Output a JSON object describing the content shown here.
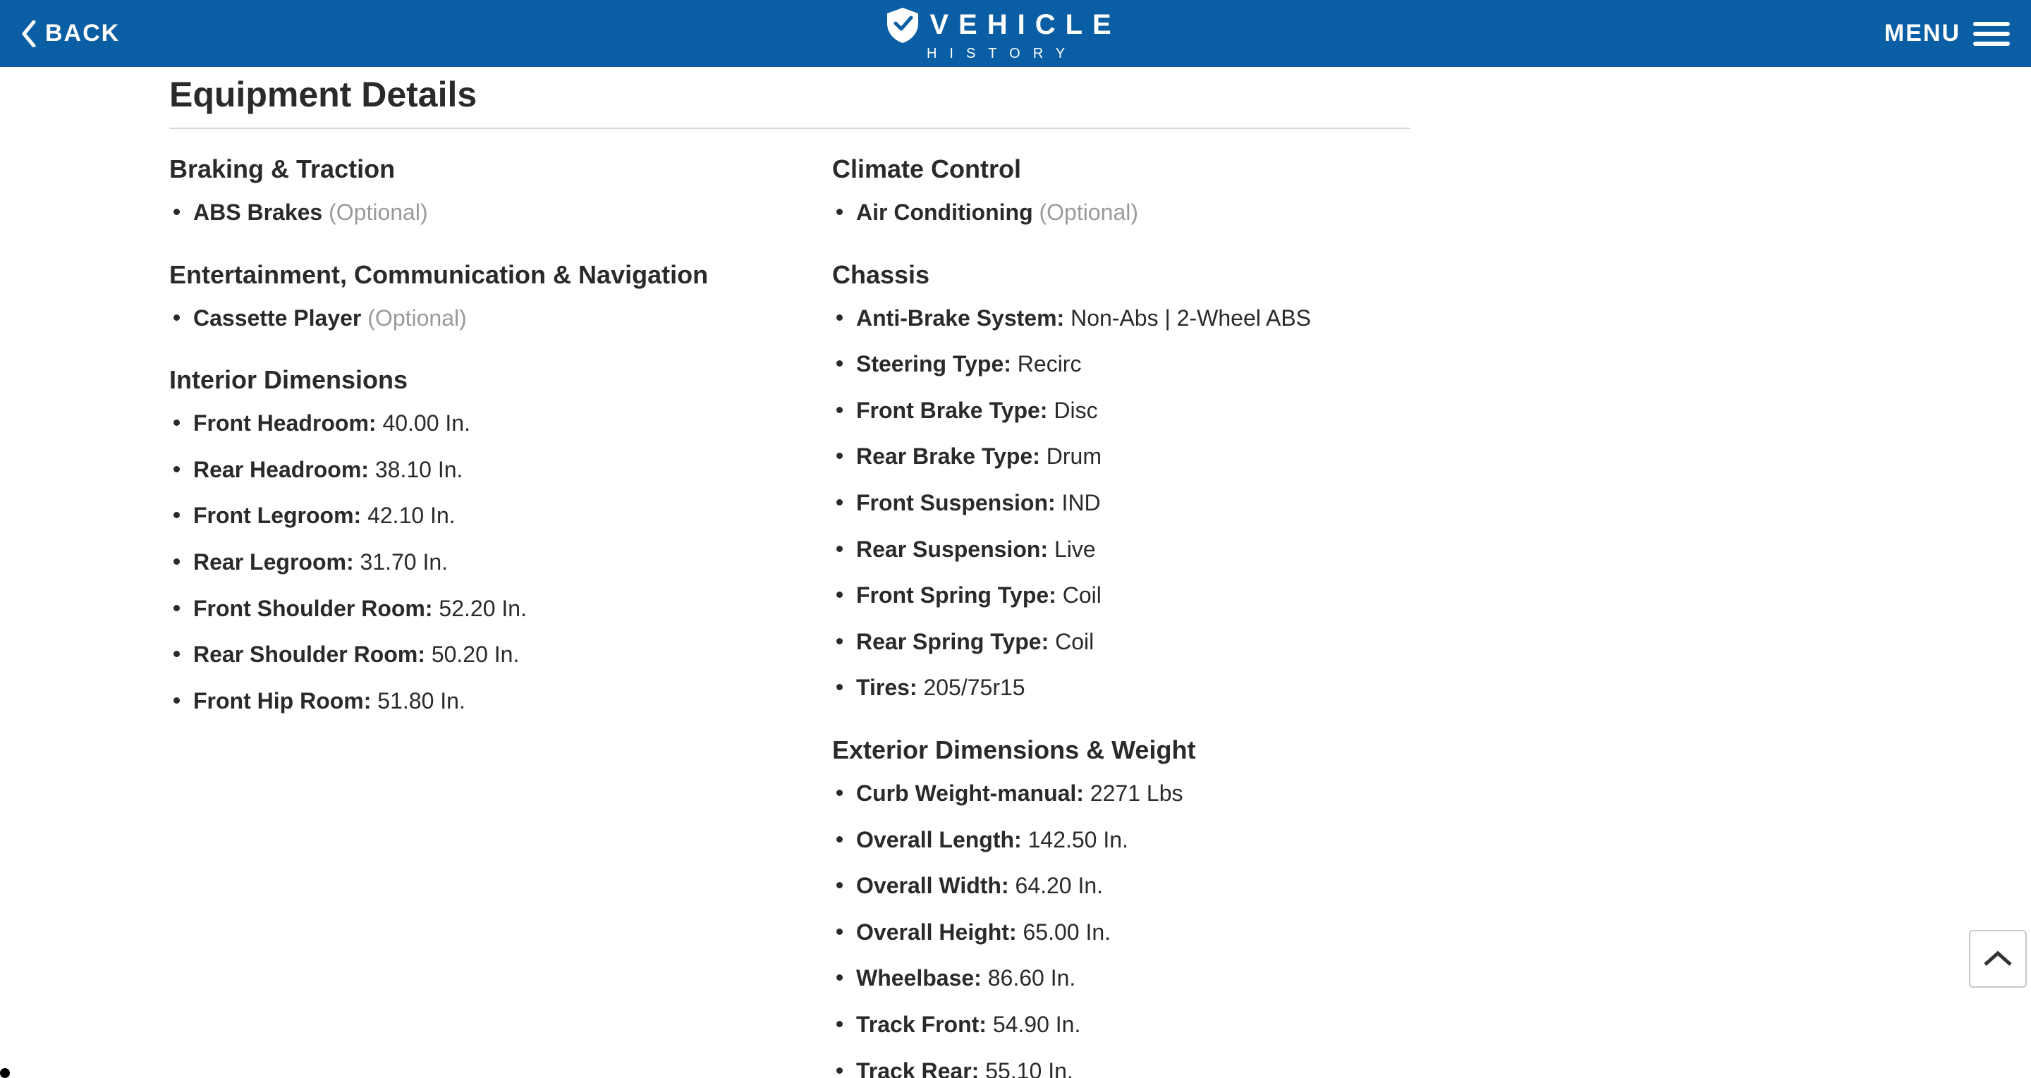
{
  "colors": {
    "topbar_bg": "#0a5ea3",
    "topbar_fg": "#ffffff",
    "page_bg": "#ffffff",
    "text": "#2a2a2a",
    "muted": "#9a9a9a",
    "rule": "#d8d8d8",
    "scroll_border": "#c8c8c8"
  },
  "topbar": {
    "back_label": "BACK",
    "logo_top": "VEHICLE",
    "logo_bottom": "HISTORY",
    "menu_label": "MENU"
  },
  "title": "Equipment Details",
  "left_sections": [
    {
      "heading": "Braking & Traction",
      "items": [
        {
          "label": "ABS Brakes",
          "value": "",
          "optional": true
        }
      ]
    },
    {
      "heading": "Entertainment, Communication & Navigation",
      "items": [
        {
          "label": "Cassette Player",
          "value": "",
          "optional": true
        }
      ]
    },
    {
      "heading": "Interior Dimensions",
      "items": [
        {
          "label": "Front Headroom:",
          "value": "40.00 In."
        },
        {
          "label": "Rear Headroom:",
          "value": "38.10 In."
        },
        {
          "label": "Front Legroom:",
          "value": "42.10 In."
        },
        {
          "label": "Rear Legroom:",
          "value": "31.70 In."
        },
        {
          "label": "Front Shoulder Room:",
          "value": "52.20 In."
        },
        {
          "label": "Rear Shoulder Room:",
          "value": "50.20 In."
        },
        {
          "label": "Front Hip Room:",
          "value": "51.80 In."
        }
      ]
    }
  ],
  "right_sections": [
    {
      "heading": "Climate Control",
      "items": [
        {
          "label": "Air Conditioning",
          "value": "",
          "optional": true
        }
      ]
    },
    {
      "heading": "Chassis",
      "items": [
        {
          "label": "Anti-Brake System:",
          "value": "Non-Abs | 2-Wheel ABS"
        },
        {
          "label": "Steering Type:",
          "value": "Recirc"
        },
        {
          "label": "Front Brake Type:",
          "value": "Disc"
        },
        {
          "label": "Rear Brake Type:",
          "value": "Drum"
        },
        {
          "label": "Front Suspension:",
          "value": "IND"
        },
        {
          "label": "Rear Suspension:",
          "value": "Live"
        },
        {
          "label": "Front Spring Type:",
          "value": "Coil"
        },
        {
          "label": "Rear Spring Type:",
          "value": "Coil"
        },
        {
          "label": "Tires:",
          "value": "205/75r15"
        }
      ]
    },
    {
      "heading": "Exterior Dimensions & Weight",
      "items": [
        {
          "label": "Curb Weight-manual:",
          "value": "2271 Lbs"
        },
        {
          "label": "Overall Length:",
          "value": "142.50 In."
        },
        {
          "label": "Overall Width:",
          "value": "64.20 In."
        },
        {
          "label": "Overall Height:",
          "value": "65.00 In."
        },
        {
          "label": "Wheelbase:",
          "value": "86.60 In."
        },
        {
          "label": "Track Front:",
          "value": "54.90 In."
        },
        {
          "label": "Track Rear:",
          "value": "55.10 In."
        }
      ]
    }
  ],
  "optional_text": "(Optional)",
  "typography": {
    "title_fontsize": 50,
    "heading_fontsize": 36,
    "item_fontsize": 32,
    "topbar_fontsize": 34
  }
}
